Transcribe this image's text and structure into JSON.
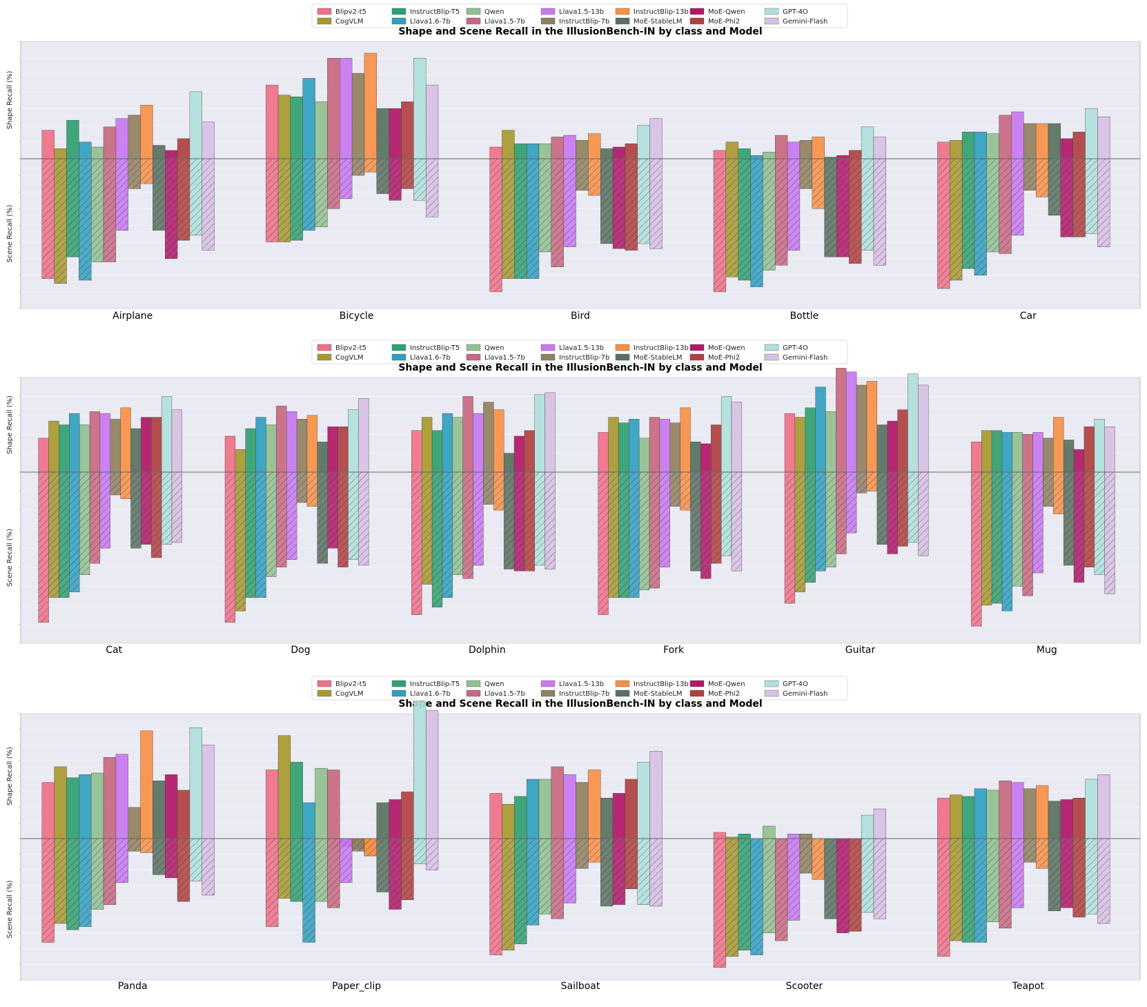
{
  "legend": {
    "models": [
      "Blipv2-t5",
      "CogVLM",
      "InstructBlip-T5",
      "Llava1.6-7b",
      "Qwen",
      "Llava1.5-7b",
      "Llava1.5-13b",
      "InstructBlip-7b",
      "InstructBlip-13b",
      "MoE-StableLM",
      "MoE-Qwen",
      "MoE-Phi2",
      "GPT-4O",
      "Gemini-Flash"
    ],
    "colors": [
      "#f07088",
      "#a89830",
      "#30a070",
      "#30a0c0",
      "#90c090",
      "#c86880",
      "#c878f0",
      "#908060",
      "#f89048",
      "#587060",
      "#b01868",
      "#b04040",
      "#b0e0dc",
      "#d8c0e4"
    ]
  },
  "chart_data": [
    {
      "type": "bar",
      "title": "Shape and Scene Recall in the IllusionBench-IN by class and Model",
      "ylabel_top": "Shape Recall (%)",
      "ylabel_bottom": "Scene Recall (%)",
      "ylim": [
        -90,
        70
      ],
      "categories": [
        "Airplane",
        "Bicycle",
        "Bird",
        "Bottle",
        "Car"
      ],
      "shape": [
        [
          17,
          6,
          23,
          10,
          7,
          19,
          24,
          26,
          32,
          8,
          5,
          12,
          40,
          22
        ],
        [
          44,
          38,
          37,
          48,
          34,
          60,
          60,
          51,
          63,
          30,
          30,
          34,
          60,
          44
        ],
        [
          7,
          17,
          9,
          9,
          9,
          13,
          14,
          11,
          15,
          6,
          7,
          9,
          20,
          24
        ],
        [
          5,
          10,
          6,
          2,
          4,
          14,
          10,
          11,
          13,
          1,
          2,
          5,
          19,
          13
        ],
        [
          10,
          11,
          16,
          16,
          15,
          26,
          28,
          21,
          21,
          21,
          12,
          16,
          30,
          25
        ]
      ],
      "scene": [
        [
          -72,
          -75,
          -59,
          -73,
          -62,
          -62,
          -43,
          -18,
          -15,
          -43,
          -60,
          -49,
          -46,
          -55
        ],
        [
          -50,
          -50,
          -49,
          -43,
          -41,
          -30,
          -24,
          -10,
          -8,
          -21,
          -25,
          -18,
          -25,
          -35
        ],
        [
          -80,
          -72,
          -72,
          -72,
          -56,
          -65,
          -53,
          -19,
          -22,
          -51,
          -54,
          -55,
          -51,
          -54
        ],
        [
          -80,
          -71,
          -73,
          -77,
          -67,
          -64,
          -55,
          -18,
          -30,
          -59,
          -59,
          -63,
          -55,
          -64
        ],
        [
          -78,
          -73,
          -66,
          -70,
          -56,
          -57,
          -46,
          -19,
          -23,
          -34,
          -47,
          -47,
          -45,
          -53
        ]
      ]
    },
    {
      "type": "bar",
      "title": "Shape and Scene Recall in the IllusionBench-IN by class and Model",
      "ylabel_top": "Shape Recall (%)",
      "ylabel_bottom": "Scene Recall (%)",
      "ylim": [
        -90,
        50
      ],
      "categories": [
        "Cat",
        "Dog",
        "Dolphin",
        "Fork",
        "Guitar",
        "Mug"
      ],
      "shape": [
        [
          18,
          27,
          25,
          31,
          25,
          32,
          31,
          28,
          34,
          23,
          29,
          29,
          40,
          33
        ],
        [
          19,
          12,
          23,
          29,
          25,
          35,
          32,
          28,
          30,
          16,
          24,
          24,
          33,
          39
        ],
        [
          22,
          29,
          22,
          31,
          29,
          40,
          31,
          37,
          33,
          10,
          19,
          22,
          41,
          42
        ],
        [
          21,
          29,
          26,
          28,
          18,
          29,
          28,
          26,
          34,
          16,
          15,
          25,
          40,
          37
        ],
        [
          31,
          29,
          34,
          45,
          32,
          55,
          53,
          46,
          48,
          25,
          27,
          33,
          52,
          46
        ],
        [
          16,
          22,
          22,
          21,
          21,
          20,
          21,
          18,
          29,
          17,
          12,
          24,
          28,
          24
        ]
      ],
      "scene": [
        [
          -79,
          -66,
          -66,
          -63,
          -54,
          -48,
          -40,
          -12,
          -14,
          -40,
          -38,
          -45,
          -38,
          -37
        ],
        [
          -79,
          -73,
          -66,
          -66,
          -55,
          -50,
          -46,
          -16,
          -18,
          -48,
          -40,
          -50,
          -46,
          -49
        ],
        [
          -75,
          -59,
          -71,
          -66,
          -54,
          -56,
          -49,
          -17,
          -20,
          -51,
          -52,
          -52,
          -49,
          -51
        ],
        [
          -75,
          -66,
          -66,
          -66,
          -62,
          -61,
          -50,
          -18,
          -20,
          -52,
          -56,
          -48,
          -44,
          -52
        ],
        [
          -69,
          -63,
          -58,
          -52,
          -50,
          -43,
          -32,
          -11,
          -10,
          -38,
          -43,
          -39,
          -37,
          -44
        ],
        [
          -81,
          -70,
          -69,
          -73,
          -60,
          -65,
          -53,
          -18,
          -22,
          -49,
          -58,
          -50,
          -54,
          -64
        ]
      ]
    },
    {
      "type": "bar",
      "title": "Shape and Scene Recall in the IllusionBench-IN by class and Model",
      "ylabel_top": "Shape Recall (%)",
      "ylabel_bottom": "Scene Recall (%)",
      "ylim": [
        -90,
        80
      ],
      "categories": [
        "Panda",
        "Paper_clip",
        "Sailboat",
        "Scooter",
        "Teapot"
      ],
      "shape": [
        [
          36,
          46,
          39,
          41,
          42,
          52,
          54,
          20,
          69,
          37,
          41,
          31,
          71,
          60
        ],
        [
          44,
          66,
          49,
          23,
          45,
          44,
          -5,
          -7,
          -11,
          23,
          25,
          30,
          88,
          82
        ],
        [
          29,
          22,
          27,
          38,
          38,
          46,
          41,
          36,
          44,
          26,
          29,
          38,
          49,
          56
        ],
        [
          4,
          1,
          3,
          0,
          8,
          0,
          3,
          3,
          0,
          0,
          0,
          0,
          15,
          19
        ],
        [
          26,
          28,
          27,
          32,
          31,
          37,
          36,
          32,
          34,
          24,
          25,
          26,
          38,
          41
        ]
      ],
      "scene": [
        [
          -66,
          -54,
          -58,
          -56,
          -45,
          -42,
          -28,
          -8,
          -9,
          -23,
          -25,
          -40,
          -27,
          -36
        ],
        [
          -56,
          -38,
          -40,
          -66,
          -40,
          -44,
          -28,
          -8,
          -11,
          -34,
          -45,
          -39,
          -16,
          -20
        ],
        [
          -74,
          -71,
          -67,
          -55,
          -48,
          -51,
          -41,
          -19,
          -15,
          -43,
          -42,
          -32,
          -42,
          -43
        ],
        [
          -82,
          -75,
          -71,
          -74,
          -60,
          -65,
          -52,
          -22,
          -26,
          -51,
          -60,
          -59,
          -47,
          -51
        ],
        [
          -75,
          -65,
          -66,
          -66,
          -53,
          -57,
          -44,
          -15,
          -19,
          -46,
          -44,
          -50,
          -48,
          -54
        ]
      ]
    }
  ]
}
